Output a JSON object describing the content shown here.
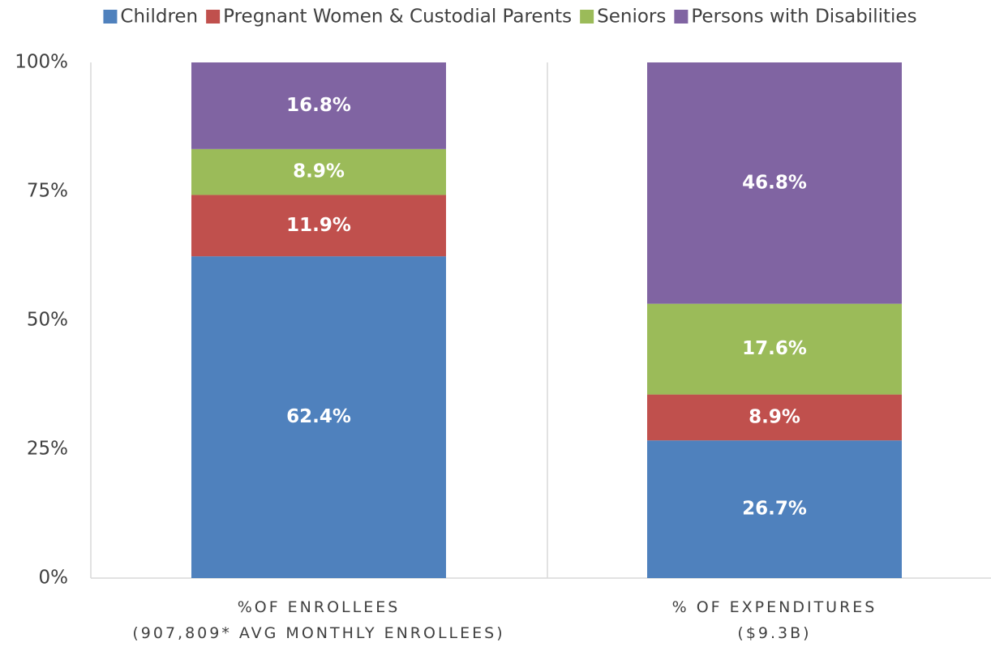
{
  "chart_data": {
    "type": "stacked_bar",
    "categories": [
      "%OF ENROLLEES\n(907,809* AVG MONTHLY ENROLLEES)",
      "% OF EXPENDITURES\n($9.3B)"
    ],
    "series": [
      {
        "name": "Children",
        "color": "#4f81bd",
        "values": [
          62.4,
          26.7
        ],
        "value_labels": [
          "62.4%",
          "26.7%"
        ]
      },
      {
        "name": "Pregnant Women & Custodial Parents",
        "color": "#c0504d",
        "values": [
          11.9,
          8.9
        ],
        "value_labels": [
          "11.9%",
          "8.9%"
        ]
      },
      {
        "name": "Seniors",
        "color": "#9bbb59",
        "values": [
          8.9,
          17.6
        ],
        "value_labels": [
          "8.9%",
          "17.6%"
        ]
      },
      {
        "name": "Persons with Disabilities",
        "color": "#8064a2",
        "values": [
          16.8,
          46.8
        ],
        "value_labels": [
          "16.8%",
          "46.8%"
        ]
      }
    ],
    "ylim": [
      0,
      100
    ],
    "yticks": [
      {
        "value": 0,
        "label": "0%"
      },
      {
        "value": 25,
        "label": "25%"
      },
      {
        "value": 50,
        "label": "50%"
      },
      {
        "value": 75,
        "label": "75%"
      },
      {
        "value": 100,
        "label": "100%"
      }
    ],
    "legend": "top"
  }
}
